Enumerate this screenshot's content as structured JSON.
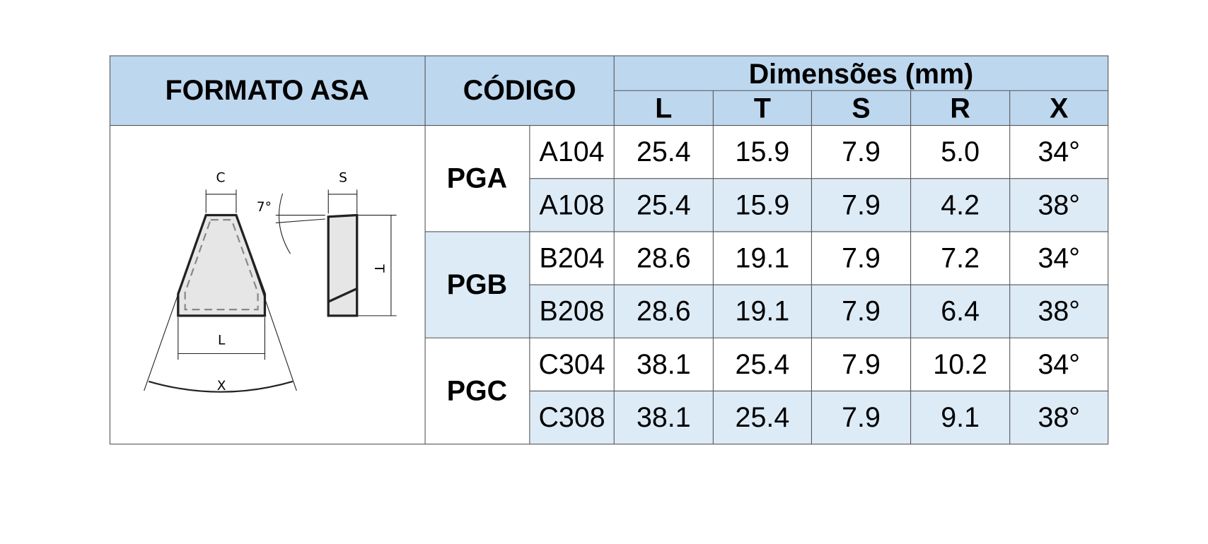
{
  "header": {
    "format": "FORMATO ASA",
    "code": "CÓDIGO",
    "dimensions": "Dimensões (mm)",
    "columns": [
      "L",
      "T",
      "S",
      "R",
      "X"
    ]
  },
  "groups": [
    {
      "name": "PGA",
      "rows": [
        [
          "A104",
          "25.4",
          "15.9",
          "7.9",
          "5.0",
          "34°"
        ],
        [
          "A108",
          "25.4",
          "15.9",
          "7.9",
          "4.2",
          "38°"
        ]
      ]
    },
    {
      "name": "PGB",
      "rows": [
        [
          "B204",
          "28.6",
          "19.1",
          "7.9",
          "7.2",
          "34°"
        ],
        [
          "B208",
          "28.6",
          "19.1",
          "7.9",
          "6.4",
          "38°"
        ]
      ]
    },
    {
      "name": "PGC",
      "rows": [
        [
          "C304",
          "38.1",
          "25.4",
          "7.9",
          "10.2",
          "34°"
        ],
        [
          "C308",
          "38.1",
          "25.4",
          "7.9",
          "9.1",
          "38°"
        ]
      ]
    }
  ],
  "diagram": {
    "labels": {
      "c": "C",
      "s": "S",
      "angle": "7°",
      "t": "T",
      "l": "L",
      "x": "X"
    }
  }
}
